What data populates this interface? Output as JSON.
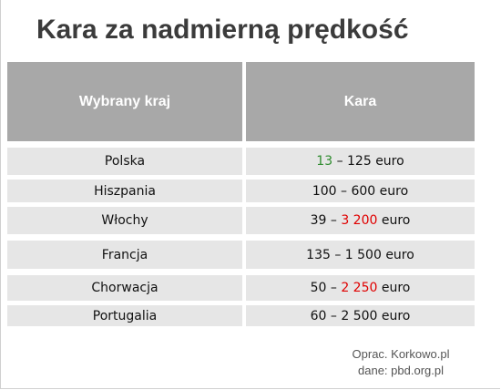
{
  "title": "Kara za nadmierną prędkość",
  "table": {
    "header": [
      "Wybrany kraj",
      "Kara"
    ],
    "rows": [
      {
        "country": "Polska",
        "penalty": [
          {
            "text": "13",
            "color": "#2e8b2e"
          },
          {
            "text": " – 125 euro"
          }
        ]
      },
      {
        "country": "Hiszpania",
        "penalty": [
          {
            "text": "100 – 600 euro"
          }
        ]
      },
      {
        "country": "Włochy",
        "penalty": [
          {
            "text": "39 – "
          },
          {
            "text": "3 200",
            "color": "#e00000"
          },
          {
            "text": " euro"
          }
        ]
      },
      {
        "country": "Francja",
        "penalty": [
          {
            "text": "135 – 1 500 euro"
          }
        ]
      },
      {
        "country": "Chorwacja",
        "penalty": [
          {
            "text": "50 – "
          },
          {
            "text": "2 250",
            "color": "#e00000"
          },
          {
            "text": " euro"
          }
        ]
      },
      {
        "country": "Portugalia",
        "penalty": [
          {
            "text": "60 – 2 500 euro"
          }
        ]
      }
    ]
  },
  "footer": [
    "Oprac. Korkowo.pl",
    "dane: pbd.org.pl"
  ]
}
